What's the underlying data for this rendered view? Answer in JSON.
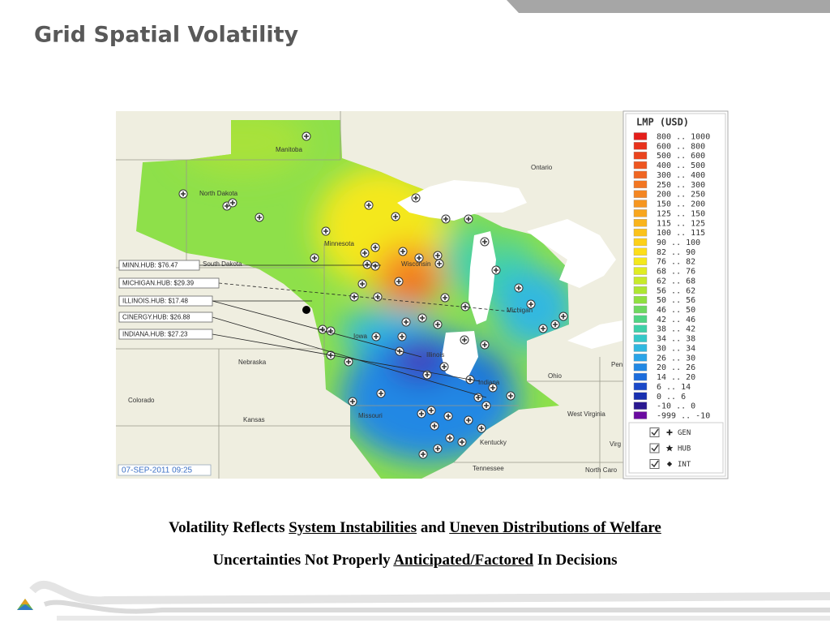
{
  "title": "Grid Spatial Volatility",
  "map": {
    "places": [
      "Manitoba",
      "Ontario",
      "North Dakota",
      "Minnesota",
      "South Dakota",
      "Wisconsin",
      "Michigan",
      "Iowa",
      "Illinois",
      "Nebraska",
      "Colorado",
      "Kansas",
      "Missouri",
      "Indiana",
      "Ohio",
      "Kentucky",
      "West Virginia",
      "Tennessee",
      "North Caro",
      "Pen",
      "Virg"
    ],
    "hubs": [
      "MINN.HUB: $76.47",
      "MICHIGAN.HUB: $29.39",
      "ILLINOIS.HUB: $17.48",
      "CINERGY.HUB: $26.88",
      "INDIANA.HUB: $27.23"
    ],
    "timestamp": "07-SEP-2011 09:25"
  },
  "legend": {
    "title": "LMP (USD)",
    "ranges": [
      {
        "label": "800 .. 1000",
        "color": "#e41e1a"
      },
      {
        "label": "600 .. 800",
        "color": "#e8321c"
      },
      {
        "label": "500 .. 600",
        "color": "#ea441e"
      },
      {
        "label": "400 .. 500",
        "color": "#ee5620"
      },
      {
        "label": "300 .. 400",
        "color": "#f06622"
      },
      {
        "label": "250 .. 300",
        "color": "#f27622"
      },
      {
        "label": "200 .. 250",
        "color": "#f48622"
      },
      {
        "label": "150 .. 200",
        "color": "#f69620"
      },
      {
        "label": "125 .. 150",
        "color": "#f8a61e"
      },
      {
        "label": "115 .. 125",
        "color": "#f9b41c"
      },
      {
        "label": "100 .. 115",
        "color": "#fbc21a"
      },
      {
        "label": "90 .. 100",
        "color": "#fdd018"
      },
      {
        "label": "82 .. 90",
        "color": "#fdde1a"
      },
      {
        "label": "76 .. 82",
        "color": "#f4e81c"
      },
      {
        "label": "68 .. 76",
        "color": "#e0ec22"
      },
      {
        "label": "62 .. 68",
        "color": "#c8ea2a"
      },
      {
        "label": "56 .. 62",
        "color": "#aee632"
      },
      {
        "label": "50 .. 56",
        "color": "#90e040"
      },
      {
        "label": "46 .. 50",
        "color": "#6ed860"
      },
      {
        "label": "42 .. 46",
        "color": "#50d484"
      },
      {
        "label": "38 .. 42",
        "color": "#3ed0a8"
      },
      {
        "label": "34 .. 38",
        "color": "#34c8c8"
      },
      {
        "label": "30 .. 34",
        "color": "#30b8e0"
      },
      {
        "label": "26 .. 30",
        "color": "#2aa4e8"
      },
      {
        "label": "20 .. 26",
        "color": "#2288e4"
      },
      {
        "label": "14 .. 20",
        "color": "#1c6cdc"
      },
      {
        "label": "6 .. 14",
        "color": "#1a48c8"
      },
      {
        "label": "0 .. 6",
        "color": "#1830b0"
      },
      {
        "label": "-10 .. 0",
        "color": "#2a1890"
      },
      {
        "label": "-999 .. -10",
        "color": "#6a0aa0"
      }
    ],
    "layers": [
      "GEN",
      "HUB",
      "INT"
    ]
  },
  "captions": [
    [
      "Volatility Reflects",
      "System Instabilities",
      "and",
      "Uneven Distributions of Welfare"
    ],
    [
      "Uncertainties Not Properly",
      "Anticipated/Factored",
      "In Decisions"
    ]
  ]
}
